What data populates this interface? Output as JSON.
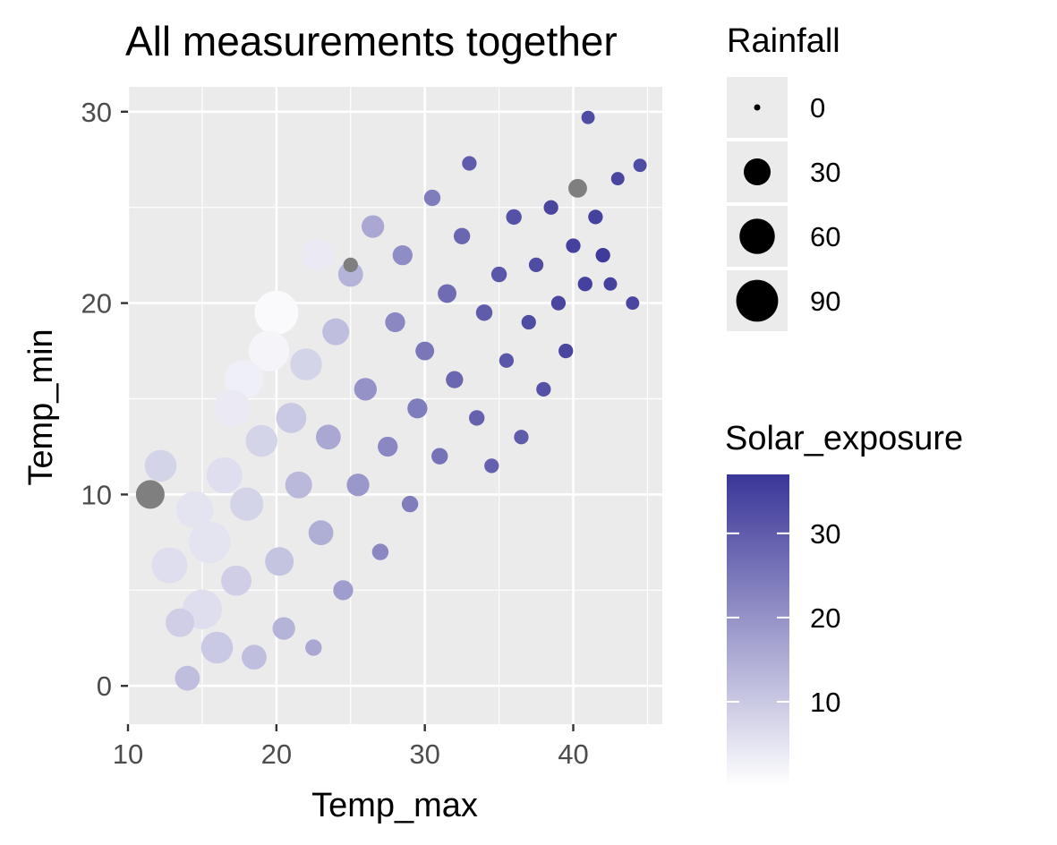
{
  "chart_data": {
    "type": "scatter",
    "title": "All measurements together",
    "xlabel": "Temp_max",
    "ylabel": "Temp_min",
    "xlim": [
      10,
      46
    ],
    "ylim": [
      -2,
      31.3
    ],
    "x_ticks": [
      "10",
      "20",
      "30",
      "40"
    ],
    "y_ticks": [
      "0",
      "10",
      "20",
      "30"
    ],
    "grid": true,
    "background": "#ebebeb",
    "size_legend": {
      "title": "Rainfall",
      "entries": [
        {
          "label": "0",
          "value": 0
        },
        {
          "label": "30",
          "value": 30
        },
        {
          "label": "60",
          "value": 60
        },
        {
          "label": "90",
          "value": 90
        }
      ]
    },
    "color_legend": {
      "title": "Solar_exposure",
      "labels": [
        "30",
        "20",
        "10"
      ],
      "tick_values": [
        30,
        20,
        10
      ],
      "range": [
        0,
        37
      ],
      "low_color": "#ffffff",
      "high_color": "#3a3698",
      "na_color": "#7f7f7f"
    },
    "points": [
      [
        11.5,
        10.0,
        30,
        null
      ],
      [
        12.2,
        11.5,
        40,
        8
      ],
      [
        12.8,
        6.3,
        55,
        6
      ],
      [
        13.5,
        3.3,
        30,
        9
      ],
      [
        14.0,
        0.4,
        20,
        12
      ],
      [
        14.5,
        9.2,
        60,
        5
      ],
      [
        15.0,
        4.0,
        70,
        6
      ],
      [
        15.5,
        7.5,
        80,
        5
      ],
      [
        16.0,
        2.0,
        40,
        10
      ],
      [
        16.5,
        11.0,
        55,
        6
      ],
      [
        17.0,
        14.5,
        60,
        4
      ],
      [
        17.3,
        5.5,
        35,
        9
      ],
      [
        17.8,
        16.0,
        70,
        3
      ],
      [
        18.0,
        9.5,
        45,
        8
      ],
      [
        18.5,
        1.5,
        20,
        12
      ],
      [
        19.0,
        12.8,
        40,
        8
      ],
      [
        19.5,
        17.5,
        75,
        2
      ],
      [
        20.0,
        19.5,
        90,
        1
      ],
      [
        20.2,
        6.5,
        30,
        11
      ],
      [
        20.5,
        3.0,
        15,
        14
      ],
      [
        21.0,
        14.0,
        35,
        10
      ],
      [
        21.5,
        10.5,
        25,
        13
      ],
      [
        22.0,
        16.8,
        40,
        8
      ],
      [
        22.5,
        2.0,
        5,
        16
      ],
      [
        22.8,
        22.5,
        40,
        4
      ],
      [
        23.0,
        8.0,
        20,
        15
      ],
      [
        23.5,
        13.0,
        20,
        16
      ],
      [
        24.0,
        18.5,
        25,
        12
      ],
      [
        24.5,
        5.0,
        10,
        18
      ],
      [
        25.0,
        21.5,
        20,
        14
      ],
      [
        25.0,
        22.0,
        3,
        null
      ],
      [
        25.5,
        10.5,
        15,
        19
      ],
      [
        26.0,
        15.5,
        15,
        20
      ],
      [
        26.5,
        24.0,
        15,
        16
      ],
      [
        27.0,
        7.0,
        5,
        22
      ],
      [
        27.5,
        12.5,
        10,
        22
      ],
      [
        28.0,
        19.0,
        10,
        22
      ],
      [
        28.5,
        22.5,
        10,
        21
      ],
      [
        29.0,
        9.5,
        5,
        24
      ],
      [
        29.5,
        14.5,
        10,
        24
      ],
      [
        30.0,
        17.5,
        8,
        25
      ],
      [
        30.5,
        25.5,
        5,
        24
      ],
      [
        31.0,
        12.0,
        5,
        26
      ],
      [
        31.5,
        20.5,
        8,
        27
      ],
      [
        32.0,
        16.0,
        6,
        28
      ],
      [
        32.5,
        23.5,
        5,
        28
      ],
      [
        33.0,
        27.3,
        3,
        30
      ],
      [
        33.5,
        14.0,
        4,
        29
      ],
      [
        34.0,
        19.5,
        5,
        30
      ],
      [
        34.5,
        11.5,
        3,
        29
      ],
      [
        35.0,
        21.5,
        4,
        31
      ],
      [
        35.5,
        17.0,
        3,
        31
      ],
      [
        36.0,
        24.5,
        4,
        32
      ],
      [
        36.5,
        13.0,
        3,
        30
      ],
      [
        37.0,
        19.0,
        3,
        33
      ],
      [
        37.5,
        22.0,
        3,
        33
      ],
      [
        38.0,
        15.5,
        3,
        32
      ],
      [
        38.5,
        25.0,
        3,
        34
      ],
      [
        39.0,
        20.0,
        3,
        34
      ],
      [
        39.5,
        17.5,
        3,
        34
      ],
      [
        40.0,
        23.0,
        3,
        35
      ],
      [
        40.3,
        26.0,
        8,
        null
      ],
      [
        40.8,
        21.0,
        3,
        35
      ],
      [
        41.0,
        29.7,
        2,
        33
      ],
      [
        41.5,
        24.5,
        3,
        35
      ],
      [
        42.0,
        22.5,
        3,
        36
      ],
      [
        42.5,
        21.0,
        2,
        35
      ],
      [
        43.0,
        26.5,
        2,
        34
      ],
      [
        44.0,
        20.0,
        2,
        34
      ],
      [
        44.5,
        27.2,
        2,
        33
      ]
    ]
  }
}
